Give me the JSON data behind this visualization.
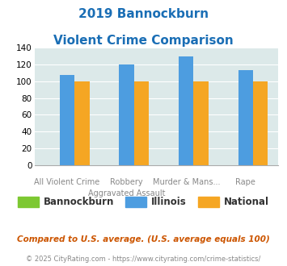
{
  "title_line1": "2019 Bannockburn",
  "title_line2": "Violent Crime Comparison",
  "cat_labels_upper": [
    "",
    "Robbery",
    "Murder & Mans...",
    ""
  ],
  "cat_labels_lower": [
    "All Violent Crime",
    "Aggravated Assault",
    "",
    "Rape"
  ],
  "bannockburn": [
    0,
    0,
    0,
    0
  ],
  "illinois": [
    108,
    120,
    130,
    113
  ],
  "national": [
    100,
    100,
    100,
    100
  ],
  "bar_colors": {
    "bannockburn": "#7dc832",
    "illinois": "#4d9de0",
    "national": "#f5a623"
  },
  "ylim": [
    0,
    140
  ],
  "yticks": [
    0,
    20,
    40,
    60,
    80,
    100,
    120,
    140
  ],
  "legend_labels": [
    "Bannockburn",
    "Illinois",
    "National"
  ],
  "footnote1": "Compared to U.S. average. (U.S. average equals 100)",
  "footnote2": "© 2025 CityRating.com - https://www.cityrating.com/crime-statistics/",
  "bg_color": "#dce9e9",
  "title_color": "#1a6eb5",
  "footnote1_color": "#cc5500",
  "footnote2_color": "#888888"
}
